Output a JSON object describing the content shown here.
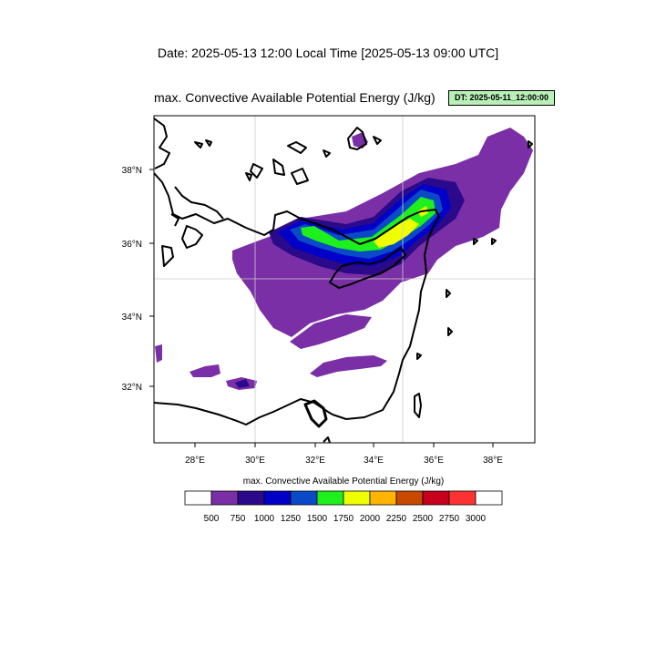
{
  "header": {
    "date_line": "Date: 2025-05-13  12:00 Local Time [2025-05-13  09:00 UTC]",
    "plot_title": "max. Convective Available Potential Energy   (J/kg)",
    "dt_badge": "DT: 2025-05-11_12:00:00"
  },
  "map": {
    "lat_labels": [
      "38°N",
      "36°N",
      "34°N",
      "32°N"
    ],
    "lon_labels": [
      "28°E",
      "30°E",
      "32°E",
      "34°E",
      "36°E",
      "38°E"
    ],
    "extent": {
      "lon_min": 26.5,
      "lon_max": 39.4,
      "lat_min": 30.4,
      "lat_max": 39.5
    }
  },
  "colorbar": {
    "title": "max. Convective Available Potential Energy  (J/kg)",
    "levels": [
      "500",
      "750",
      "1000",
      "1250",
      "1500",
      "1750",
      "2000",
      "2250",
      "2500",
      "2750",
      "3000"
    ],
    "colors": [
      "#ffffff",
      "#7a2fa6",
      "#2a0a8a",
      "#0000c8",
      "#0a4ac8",
      "#1ef01e",
      "#f0ff00",
      "#ffb400",
      "#c84a00",
      "#c8001e",
      "#ff3232",
      "#ffffff"
    ]
  }
}
